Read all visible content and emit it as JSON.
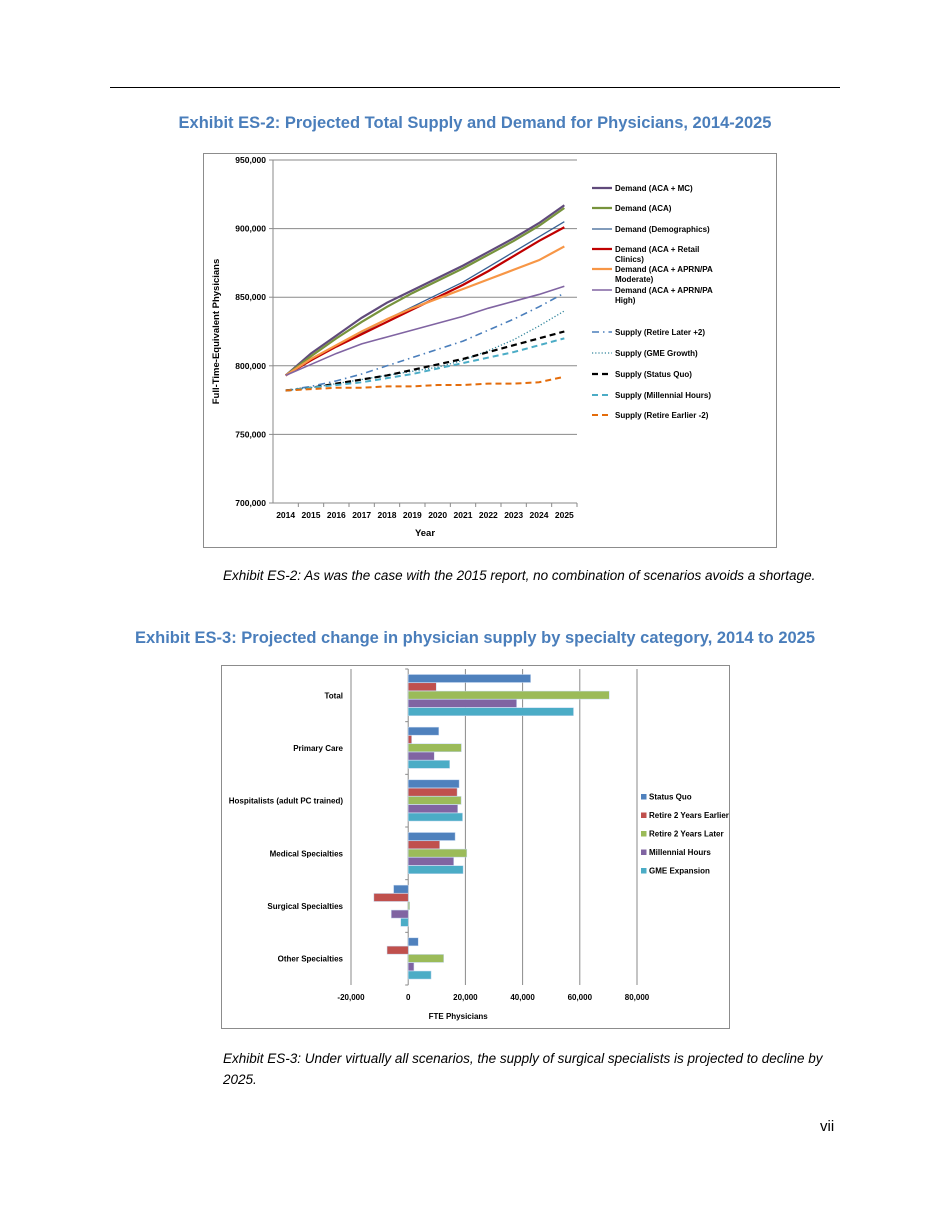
{
  "exhibit2": {
    "title": "Exhibit ES-2: Projected Total Supply and Demand for Physicians, 2014-2025",
    "caption": "Exhibit ES-2: As was the case with the 2015 report, no combination of scenarios avoids a shortage."
  },
  "exhibit3": {
    "title": "Exhibit ES-3: Projected change in physician supply by specialty category, 2014 to 2025",
    "caption": "Exhibit ES-3: Under virtually all scenarios, the supply of surgical specialists is projected to decline by 2025."
  },
  "page_number": "vii",
  "chart_data": [
    {
      "type": "line",
      "xlabel": "Year",
      "ylabel": "Full-Time-Equivalent Physicians",
      "ylim": [
        700000,
        950000
      ],
      "yticks": [
        "700,000",
        "750,000",
        "800,000",
        "850,000",
        "900,000",
        "950,000"
      ],
      "ytick_values": [
        700000,
        750000,
        800000,
        850000,
        900000,
        950000
      ],
      "x": [
        "2014",
        "2015",
        "2016",
        "2017",
        "2018",
        "2019",
        "2020",
        "2021",
        "2022",
        "2023",
        "2024",
        "2025"
      ],
      "grid": "horizontal",
      "legend": "right",
      "series": [
        {
          "name": "Demand (ACA + MC)",
          "color": "#604a7b",
          "dash": "solid",
          "width": 2.2,
          "values": [
            793000,
            809000,
            822000,
            835000,
            846000,
            855000,
            864000,
            873000,
            883000,
            893000,
            904000,
            917000
          ]
        },
        {
          "name": "Demand (ACA)",
          "color": "#77933c",
          "dash": "solid",
          "width": 2.2,
          "values": [
            793000,
            807000,
            820000,
            832000,
            843000,
            853000,
            862000,
            871000,
            881000,
            891000,
            902000,
            915000
          ]
        },
        {
          "name": "Demand (Demographics)",
          "color": "#376092",
          "dash": "solid",
          "width": 1.3,
          "values": [
            793000,
            805000,
            815000,
            824000,
            834000,
            843000,
            852000,
            861000,
            872000,
            883000,
            894000,
            905000
          ]
        },
        {
          "name": "Demand (ACA + Retail Clinics)",
          "color": "#c00000",
          "dash": "solid",
          "width": 2.2,
          "values": [
            793000,
            804000,
            814000,
            823000,
            832000,
            841000,
            850000,
            859000,
            869000,
            880000,
            891000,
            901000
          ]
        },
        {
          "name": "Demand (ACA + APRN/PA Moderate)",
          "color": "#f79646",
          "dash": "solid",
          "width": 2.2,
          "values": [
            793000,
            805000,
            815000,
            825000,
            834000,
            842000,
            849000,
            856000,
            863000,
            870000,
            877000,
            887000
          ]
        },
        {
          "name": "Demand (ACA + APRN/PA High)",
          "color": "#8064a2",
          "dash": "solid",
          "width": 1.6,
          "values": [
            793000,
            801000,
            809000,
            816000,
            821000,
            826000,
            831000,
            836000,
            842000,
            847000,
            852000,
            858000
          ]
        },
        {
          "name": "Supply (Retire Later +2)",
          "color": "#4a7ebb",
          "dash": "dashdot",
          "width": 1.6,
          "values": [
            782000,
            785000,
            789000,
            794000,
            800000,
            806000,
            812000,
            818000,
            826000,
            834000,
            843000,
            853000
          ]
        },
        {
          "name": "Supply (GME Growth)",
          "color": "#31859c",
          "dash": "dot",
          "width": 1.3,
          "values": [
            782000,
            784000,
            787000,
            790000,
            793000,
            796000,
            799000,
            804000,
            811000,
            819000,
            829000,
            840000
          ]
        },
        {
          "name": "Supply (Status Quo)",
          "color": "#000000",
          "dash": "dash",
          "width": 2.2,
          "values": [
            782000,
            784000,
            787000,
            790000,
            793000,
            797000,
            801000,
            805000,
            810000,
            815000,
            820000,
            825000
          ]
        },
        {
          "name": "Supply (Millennial Hours)",
          "color": "#4bacc6",
          "dash": "dash",
          "width": 2,
          "values": [
            782000,
            784000,
            786000,
            788000,
            791000,
            794000,
            798000,
            802000,
            806000,
            810000,
            815000,
            820000
          ]
        },
        {
          "name": "Supply (Retire Earlier -2)",
          "color": "#e46c0a",
          "dash": "dash",
          "width": 2,
          "values": [
            782000,
            783000,
            784000,
            784000,
            785000,
            785000,
            786000,
            786000,
            787000,
            787000,
            788000,
            792000
          ]
        }
      ]
    },
    {
      "type": "bar",
      "orientation": "horizontal",
      "xlabel": "FTE Physicians",
      "xlim": [
        -20000,
        80000
      ],
      "xticks": [
        "-20,000",
        "0",
        "20,000",
        "40,000",
        "60,000",
        "80,000"
      ],
      "xtick_values": [
        -20000,
        0,
        20000,
        40000,
        60000,
        80000
      ],
      "grid": "vertical",
      "legend": "right",
      "categories": [
        "Total",
        "Primary Care",
        "Hospitalists (adult PC trained)",
        "Medical Specialties",
        "Surgical Specialties",
        "Other Specialties"
      ],
      "series": [
        {
          "name": "Status Quo",
          "color": "#4f81bd",
          "values": [
            42800,
            10700,
            17800,
            16400,
            -5100,
            3500
          ]
        },
        {
          "name": "Retire 2 Years Earlier",
          "color": "#c0504d",
          "values": [
            9800,
            1200,
            17100,
            11000,
            -12000,
            -7400
          ]
        },
        {
          "name": "Retire 2 Years Later",
          "color": "#9bbb59",
          "values": [
            70300,
            18600,
            18500,
            20500,
            500,
            12400
          ]
        },
        {
          "name": "Millennial Hours",
          "color": "#8064a2",
          "values": [
            37900,
            9100,
            17300,
            15900,
            -5900,
            2000
          ]
        },
        {
          "name": "GME Expansion",
          "color": "#4bacc6",
          "values": [
            57800,
            14500,
            19000,
            19200,
            -2600,
            8000
          ]
        }
      ]
    }
  ]
}
